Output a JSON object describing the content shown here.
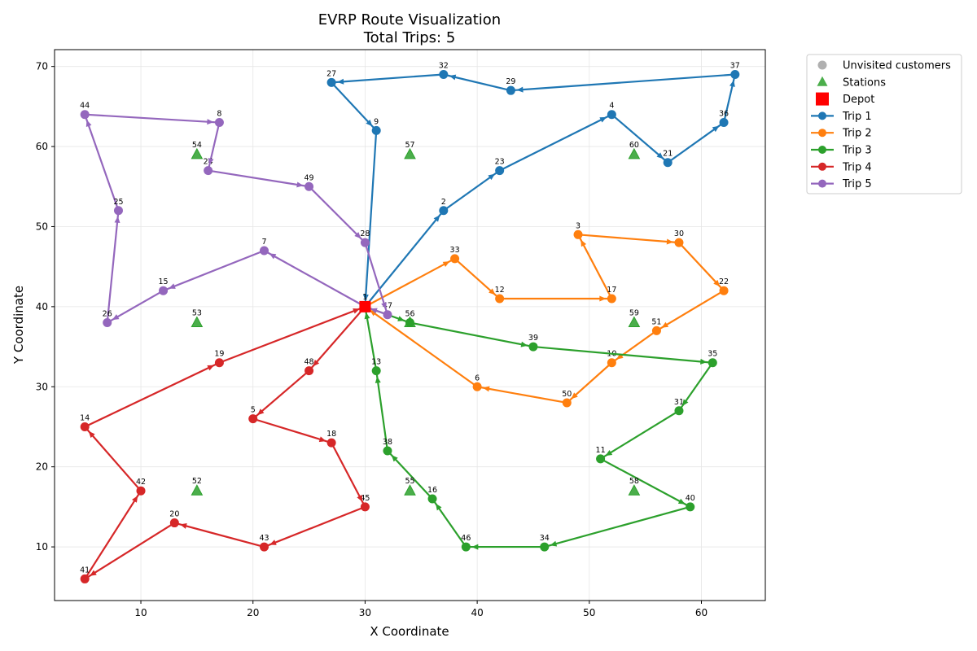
{
  "chart_data": {
    "type": "scatter",
    "title_line1": "EVRP Route Visualization",
    "title_line2": "Total Trips: 5",
    "xlabel": "X Coordinate",
    "ylabel": "Y Coordinate",
    "xlim": [
      2.3,
      65.7
    ],
    "ylim": [
      3.3,
      72.1
    ],
    "xticks": [
      10,
      20,
      30,
      40,
      50,
      60
    ],
    "yticks": [
      10,
      20,
      30,
      40,
      50,
      60,
      70
    ],
    "grid": true,
    "legend_position": "outside-top-right",
    "legend": [
      {
        "label": "Unvisited customers",
        "kind": "gray-circle",
        "color": "#b0b0b0"
      },
      {
        "label": "Stations",
        "kind": "triangle",
        "color": "#2ca02c"
      },
      {
        "label": "Depot",
        "kind": "square",
        "color": "#ff0000"
      },
      {
        "label": "Trip 1",
        "kind": "line",
        "color": "#1f77b4"
      },
      {
        "label": "Trip 2",
        "kind": "line",
        "color": "#ff7f0e"
      },
      {
        "label": "Trip 3",
        "kind": "line",
        "color": "#2ca02c"
      },
      {
        "label": "Trip 4",
        "kind": "line",
        "color": "#d62728"
      },
      {
        "label": "Trip 5",
        "kind": "line",
        "color": "#9467bd"
      }
    ],
    "depot": {
      "id": "1",
      "x": 30,
      "y": 40
    },
    "stations": [
      {
        "id": "52",
        "x": 15,
        "y": 17
      },
      {
        "id": "53",
        "x": 15,
        "y": 38
      },
      {
        "id": "54",
        "x": 15,
        "y": 59
      },
      {
        "id": "55",
        "x": 34,
        "y": 17
      },
      {
        "id": "56",
        "x": 34,
        "y": 38
      },
      {
        "id": "57",
        "x": 34,
        "y": 59
      },
      {
        "id": "58",
        "x": 54,
        "y": 17
      },
      {
        "id": "59",
        "x": 54,
        "y": 38
      },
      {
        "id": "60",
        "x": 54,
        "y": 59
      }
    ],
    "trips": [
      {
        "name": "Trip 1",
        "color": "#1f77b4",
        "points": [
          {
            "id": "1",
            "x": 30,
            "y": 40
          },
          {
            "id": "2",
            "x": 37,
            "y": 52
          },
          {
            "id": "23",
            "x": 42,
            "y": 57
          },
          {
            "id": "4",
            "x": 52,
            "y": 64
          },
          {
            "id": "21",
            "x": 57,
            "y": 58
          },
          {
            "id": "36",
            "x": 62,
            "y": 63
          },
          {
            "id": "37",
            "x": 63,
            "y": 69
          },
          {
            "id": "29",
            "x": 43,
            "y": 67
          },
          {
            "id": "32",
            "x": 37,
            "y": 69
          },
          {
            "id": "27",
            "x": 27,
            "y": 68
          },
          {
            "id": "9",
            "x": 31,
            "y": 62
          },
          {
            "id": "1",
            "x": 30,
            "y": 40
          }
        ]
      },
      {
        "name": "Trip 2",
        "color": "#ff7f0e",
        "points": [
          {
            "id": "1",
            "x": 30,
            "y": 40
          },
          {
            "id": "33",
            "x": 38,
            "y": 46
          },
          {
            "id": "12",
            "x": 42,
            "y": 41
          },
          {
            "id": "17",
            "x": 52,
            "y": 41
          },
          {
            "id": "3",
            "x": 49,
            "y": 49
          },
          {
            "id": "30",
            "x": 58,
            "y": 48
          },
          {
            "id": "22",
            "x": 62,
            "y": 42
          },
          {
            "id": "51",
            "x": 56,
            "y": 37
          },
          {
            "id": "10",
            "x": 52,
            "y": 33
          },
          {
            "id": "50",
            "x": 48,
            "y": 28
          },
          {
            "id": "6",
            "x": 40,
            "y": 30
          },
          {
            "id": "1",
            "x": 30,
            "y": 40
          }
        ]
      },
      {
        "name": "Trip 3",
        "color": "#2ca02c",
        "points": [
          {
            "id": "1",
            "x": 30,
            "y": 40
          },
          {
            "id": "56",
            "x": 34,
            "y": 38
          },
          {
            "id": "39",
            "x": 45,
            "y": 35
          },
          {
            "id": "35",
            "x": 61,
            "y": 33
          },
          {
            "id": "31",
            "x": 58,
            "y": 27
          },
          {
            "id": "11",
            "x": 51,
            "y": 21
          },
          {
            "id": "40",
            "x": 59,
            "y": 15
          },
          {
            "id": "34",
            "x": 46,
            "y": 10
          },
          {
            "id": "46",
            "x": 39,
            "y": 10
          },
          {
            "id": "16",
            "x": 36,
            "y": 16
          },
          {
            "id": "38",
            "x": 32,
            "y": 22
          },
          {
            "id": "13",
            "x": 31,
            "y": 32
          },
          {
            "id": "1",
            "x": 30,
            "y": 40
          }
        ]
      },
      {
        "name": "Trip 4",
        "color": "#d62728",
        "points": [
          {
            "id": "1",
            "x": 30,
            "y": 40
          },
          {
            "id": "48",
            "x": 25,
            "y": 32
          },
          {
            "id": "5",
            "x": 20,
            "y": 26
          },
          {
            "id": "18",
            "x": 27,
            "y": 23
          },
          {
            "id": "45",
            "x": 30,
            "y": 15
          },
          {
            "id": "43",
            "x": 21,
            "y": 10
          },
          {
            "id": "20",
            "x": 13,
            "y": 13
          },
          {
            "id": "41",
            "x": 5,
            "y": 6
          },
          {
            "id": "42",
            "x": 10,
            "y": 17
          },
          {
            "id": "14",
            "x": 5,
            "y": 25
          },
          {
            "id": "19",
            "x": 17,
            "y": 33
          },
          {
            "id": "1",
            "x": 30,
            "y": 40
          }
        ]
      },
      {
        "name": "Trip 5",
        "color": "#9467bd",
        "points": [
          {
            "id": "1",
            "x": 30,
            "y": 40
          },
          {
            "id": "7",
            "x": 21,
            "y": 47
          },
          {
            "id": "15",
            "x": 12,
            "y": 42
          },
          {
            "id": "26",
            "x": 7,
            "y": 38
          },
          {
            "id": "25",
            "x": 8,
            "y": 52
          },
          {
            "id": "44",
            "x": 5,
            "y": 64
          },
          {
            "id": "8",
            "x": 17,
            "y": 63
          },
          {
            "id": "24",
            "x": 16,
            "y": 57
          },
          {
            "id": "49",
            "x": 25,
            "y": 55
          },
          {
            "id": "28",
            "x": 30,
            "y": 48
          },
          {
            "id": "47",
            "x": 32,
            "y": 39
          },
          {
            "id": "1",
            "x": 30,
            "y": 40
          }
        ]
      }
    ]
  }
}
